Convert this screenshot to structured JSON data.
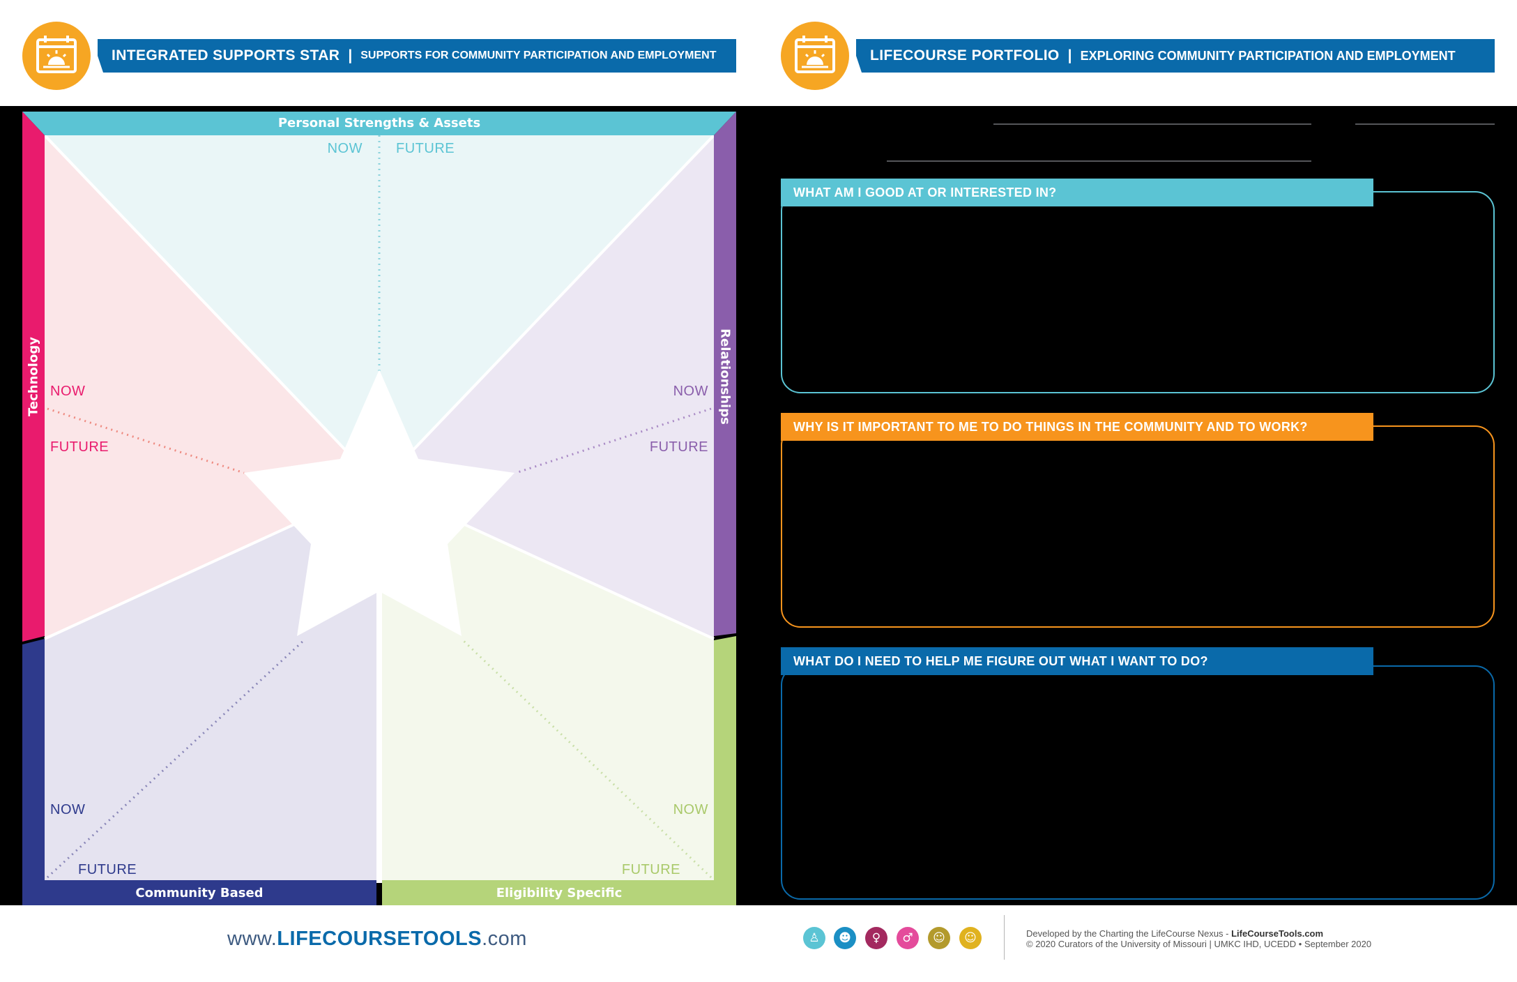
{
  "left_header": {
    "title": "INTEGRATED SUPPORTS STAR",
    "separator": "|",
    "subtitle": "SUPPORTS FOR COMMUNITY PARTICIPATION AND EMPLOYMENT",
    "logo_icon": "calendar-sunrise-icon"
  },
  "right_header": {
    "title": "LIFECOURSE PORTFOLIO",
    "separator": "|",
    "subtitle": "EXPLORING COMMUNITY PARTICIPATION AND EMPLOYMENT",
    "logo_icon": "calendar-sunrise-icon"
  },
  "star": {
    "top_label": "Personal Strengths & Assets",
    "left_label": "Technology",
    "right_label": "Relationships",
    "bottom_left_label": "Community Based",
    "bottom_right_label": "Eligibility Specific",
    "top_now": "NOW",
    "top_future": "FUTURE",
    "left_now": "NOW",
    "left_future": "FUTURE",
    "right_now": "NOW",
    "right_future": "FUTURE",
    "bottom_left_now": "NOW",
    "bottom_left_future": "FUTURE",
    "bottom_right_now": "NOW",
    "bottom_right_future": "FUTURE"
  },
  "colors": {
    "header_blue": "#0a6aaa",
    "logo_orange": "#f6a623",
    "teal": "#5bc4d4",
    "pink": "#e91b6d",
    "purple": "#8a5eab",
    "navy": "#2e3a8c",
    "green": "#b5d47a",
    "orange": "#f7941d",
    "question_blue": "#0a6aaa"
  },
  "questions": [
    {
      "label": "WHAT AM I GOOD AT OR INTERESTED IN?"
    },
    {
      "label": "WHY IS IT IMPORTANT TO ME TO DO THINGS IN THE COMMUNITY AND TO WORK?"
    },
    {
      "label": "WHAT DO I NEED TO HELP ME FIGURE OUT WHAT I WANT TO DO?"
    }
  ],
  "footer": {
    "url_prefix": "www.",
    "url_brand": "LIFECOURSETOOLS",
    "url_suffix": ".com",
    "icons": [
      "child-icon",
      "family-icon",
      "person-icon",
      "parent-child-icon",
      "group-icon",
      "elders-icon"
    ],
    "credit_line1_prefix": "Developed by the Charting the LifeCourse Nexus - ",
    "credit_line1_brand": "LifeCourseTools.com",
    "credit_line2": "© 2020 Curators of the University of Missouri  |  UMKC IHD, UCEDD  •  September 2020"
  }
}
